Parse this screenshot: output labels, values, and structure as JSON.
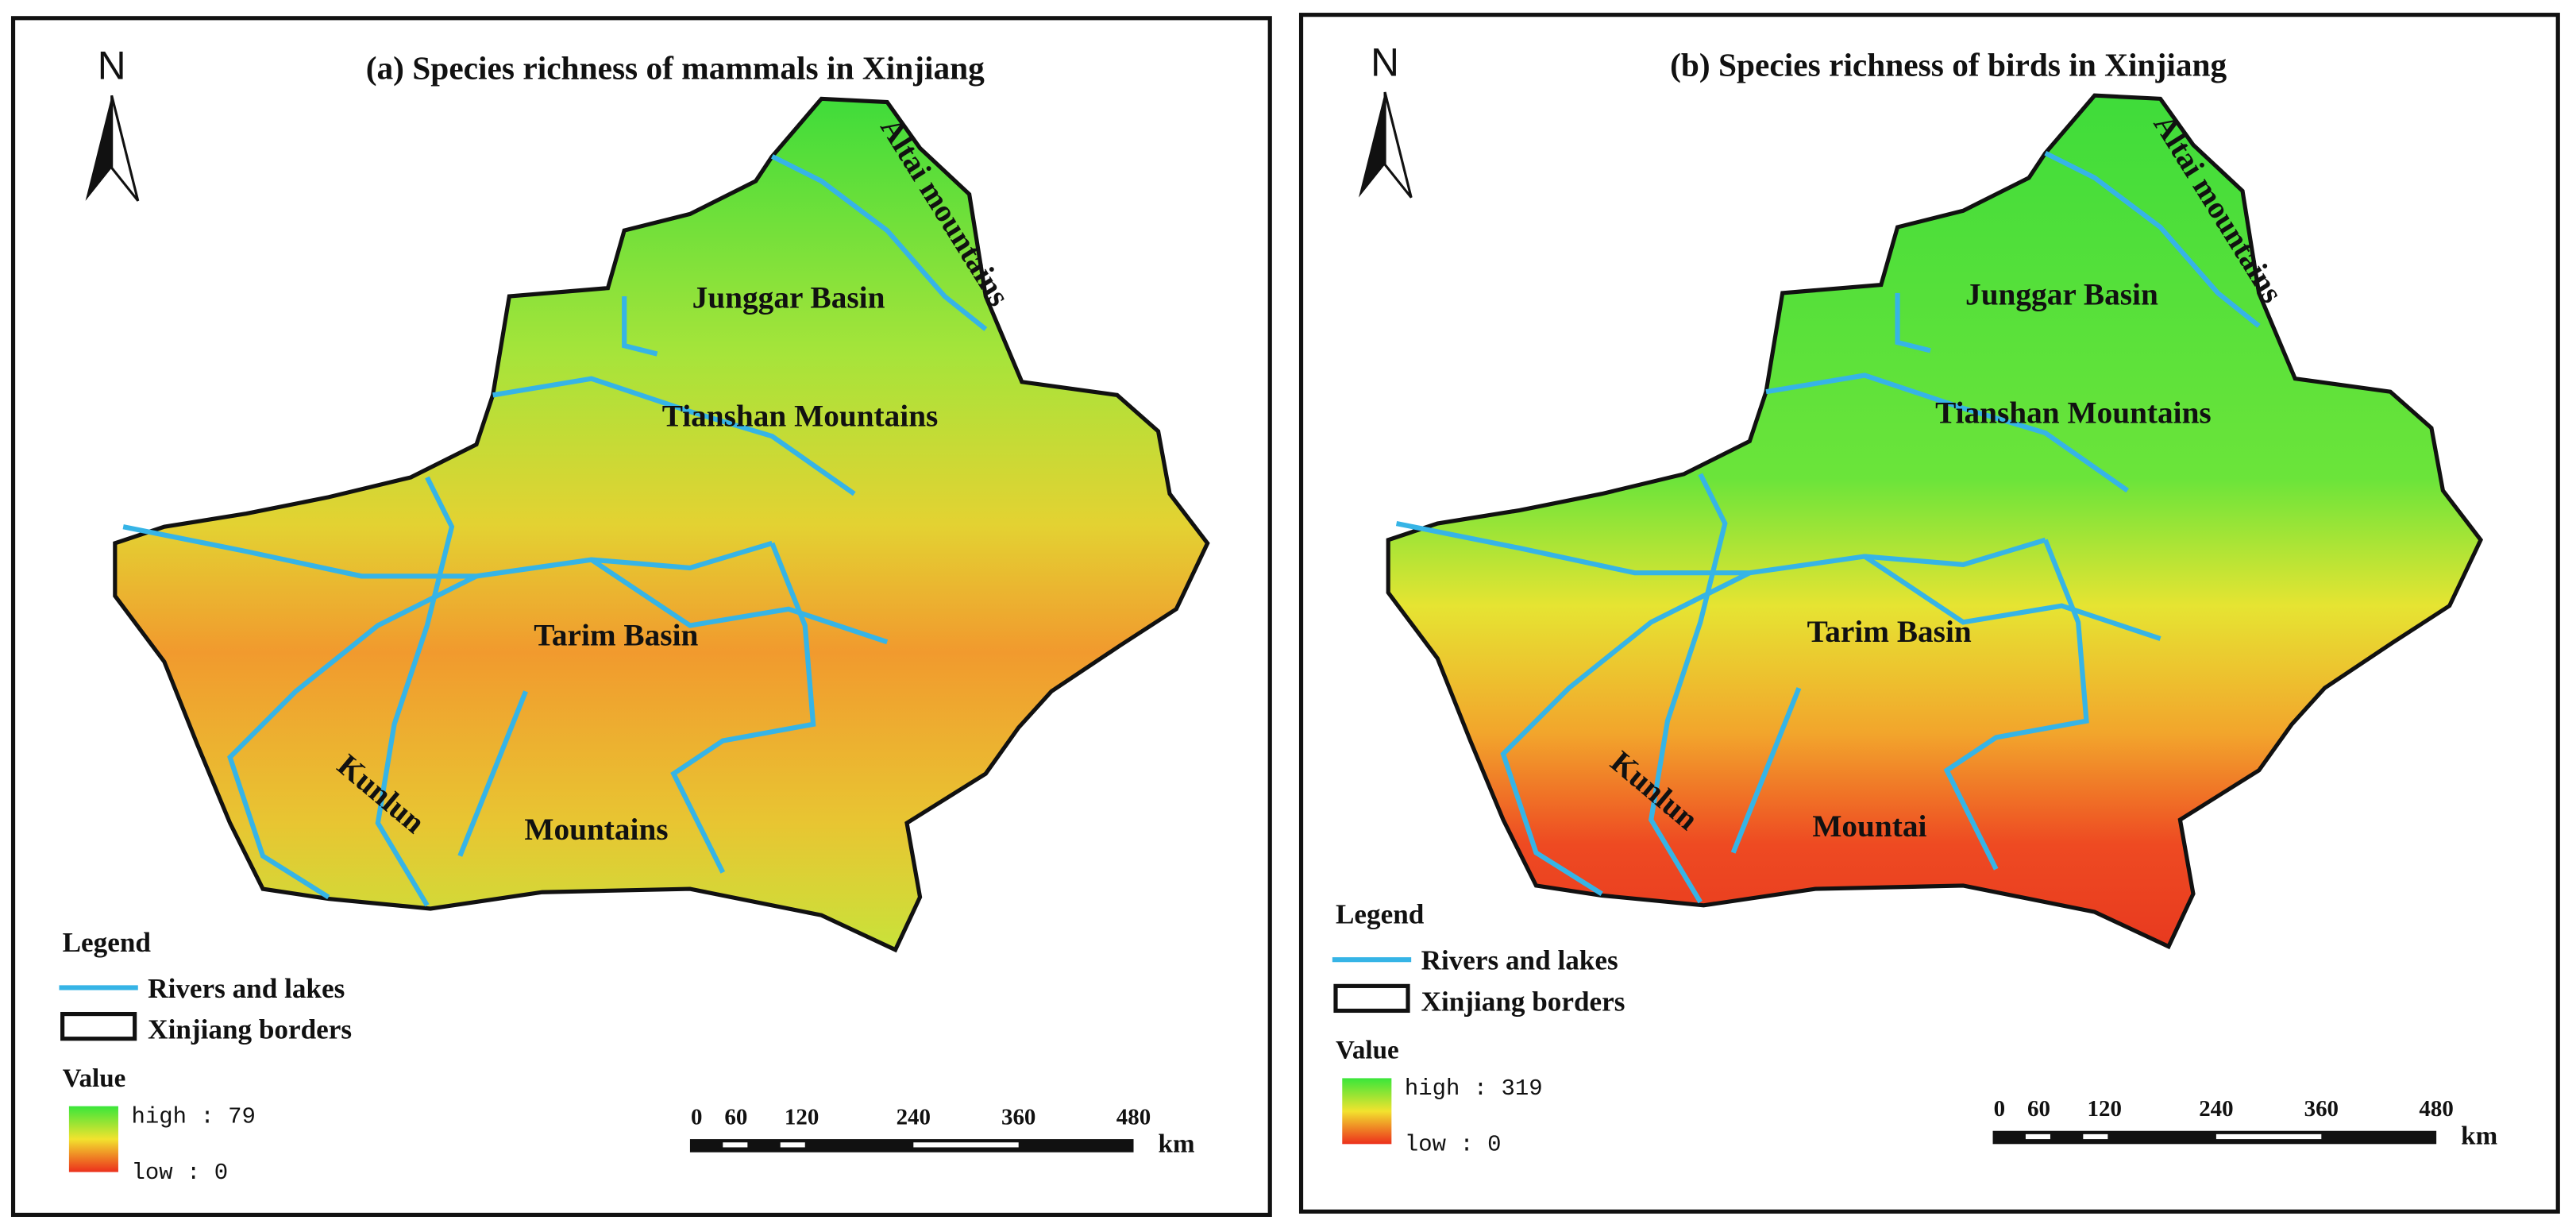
{
  "panels": [
    {
      "title": "(a) Species richness of mammals in Xinjiang",
      "north": "N",
      "places": [
        "Altai mountains",
        "Junggar Basin",
        "Tianshan Mountains",
        "Tarim Basin",
        "Kunlun",
        "Mountains"
      ],
      "legend": {
        "title": "Legend",
        "rivers": "Rivers and lakes",
        "borders": "Xinjiang borders"
      },
      "value": {
        "title": "Value",
        "high": "high : 79",
        "low": "low : 0"
      },
      "scale": {
        "labels": [
          0,
          60,
          120,
          240,
          360,
          480
        ],
        "unit": "km"
      }
    },
    {
      "title": "(b) Species richness of birds in Xinjiang",
      "north": "N",
      "places": [
        "Altai mountains",
        "Junggar Basin",
        "Tianshan Mountains",
        "Tarim Basin",
        "Kunlun",
        "Mountai"
      ],
      "legend": {
        "title": "Legend",
        "rivers": "Rivers and lakes",
        "borders": "Xinjiang borders"
      },
      "value": {
        "title": "Value",
        "high": "high : 319",
        "low": "low : 0"
      },
      "scale": {
        "labels": [
          0,
          60,
          120,
          240,
          360,
          480
        ],
        "unit": "km"
      }
    }
  ]
}
